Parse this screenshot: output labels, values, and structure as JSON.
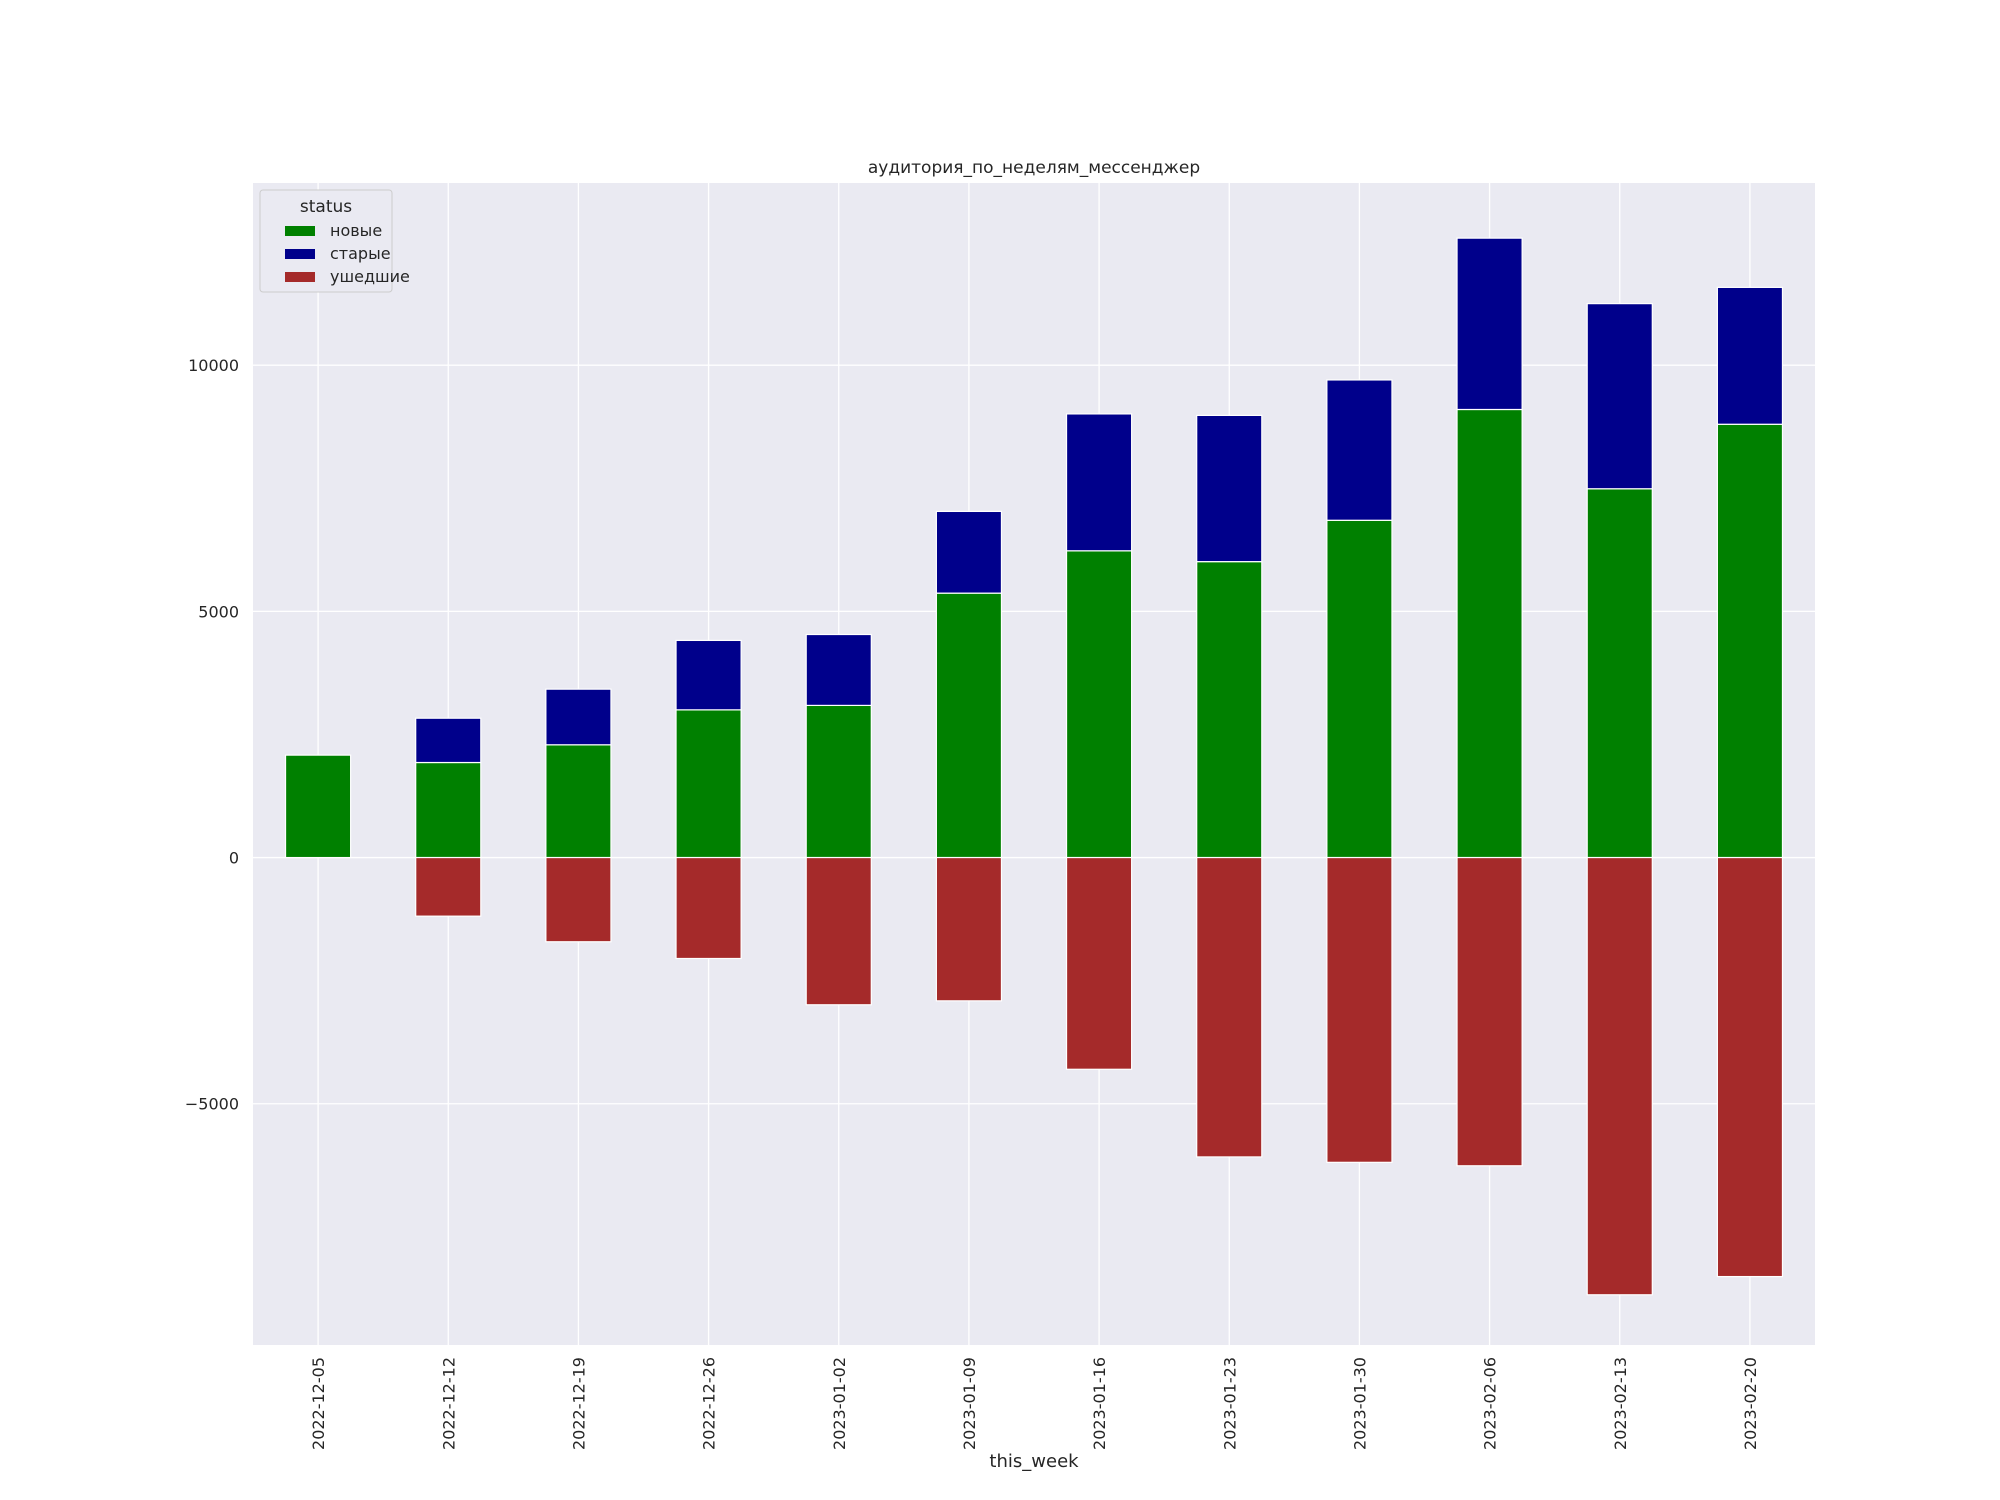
{
  "chart_data": {
    "type": "bar",
    "stacked": true,
    "title": "аудитория_по_неделям_мессенджер",
    "xlabel": "this_week",
    "ylabel": "",
    "categories": [
      "2022-12-05",
      "2022-12-12",
      "2022-12-19",
      "2022-12-26",
      "2023-01-02",
      "2023-01-09",
      "2023-01-16",
      "2023-01-23",
      "2023-01-30",
      "2023-02-06",
      "2023-02-13",
      "2023-02-20"
    ],
    "series": [
      {
        "name": "новые",
        "color": "#008000",
        "values": [
          2080,
          1930,
          2290,
          3000,
          3090,
          5370,
          6230,
          6010,
          6850,
          9100,
          7490,
          8800
        ]
      },
      {
        "name": "старые",
        "color": "#00008b",
        "values": [
          0,
          900,
          1130,
          1410,
          1440,
          1660,
          2780,
          2970,
          2850,
          3480,
          3760,
          2780
        ]
      },
      {
        "name": "ушедшие",
        "color": "#a52a2a",
        "values": [
          0,
          -1190,
          -1710,
          -2050,
          -2990,
          -2910,
          -4300,
          -6080,
          -6190,
          -6260,
          -8880,
          -8510
        ]
      }
    ],
    "ylim": [
      -9900,
      13700
    ],
    "yticks": [
      -5000,
      0,
      5000,
      10000
    ],
    "grid": true,
    "legend": {
      "title": "status",
      "position": "top-left"
    }
  }
}
